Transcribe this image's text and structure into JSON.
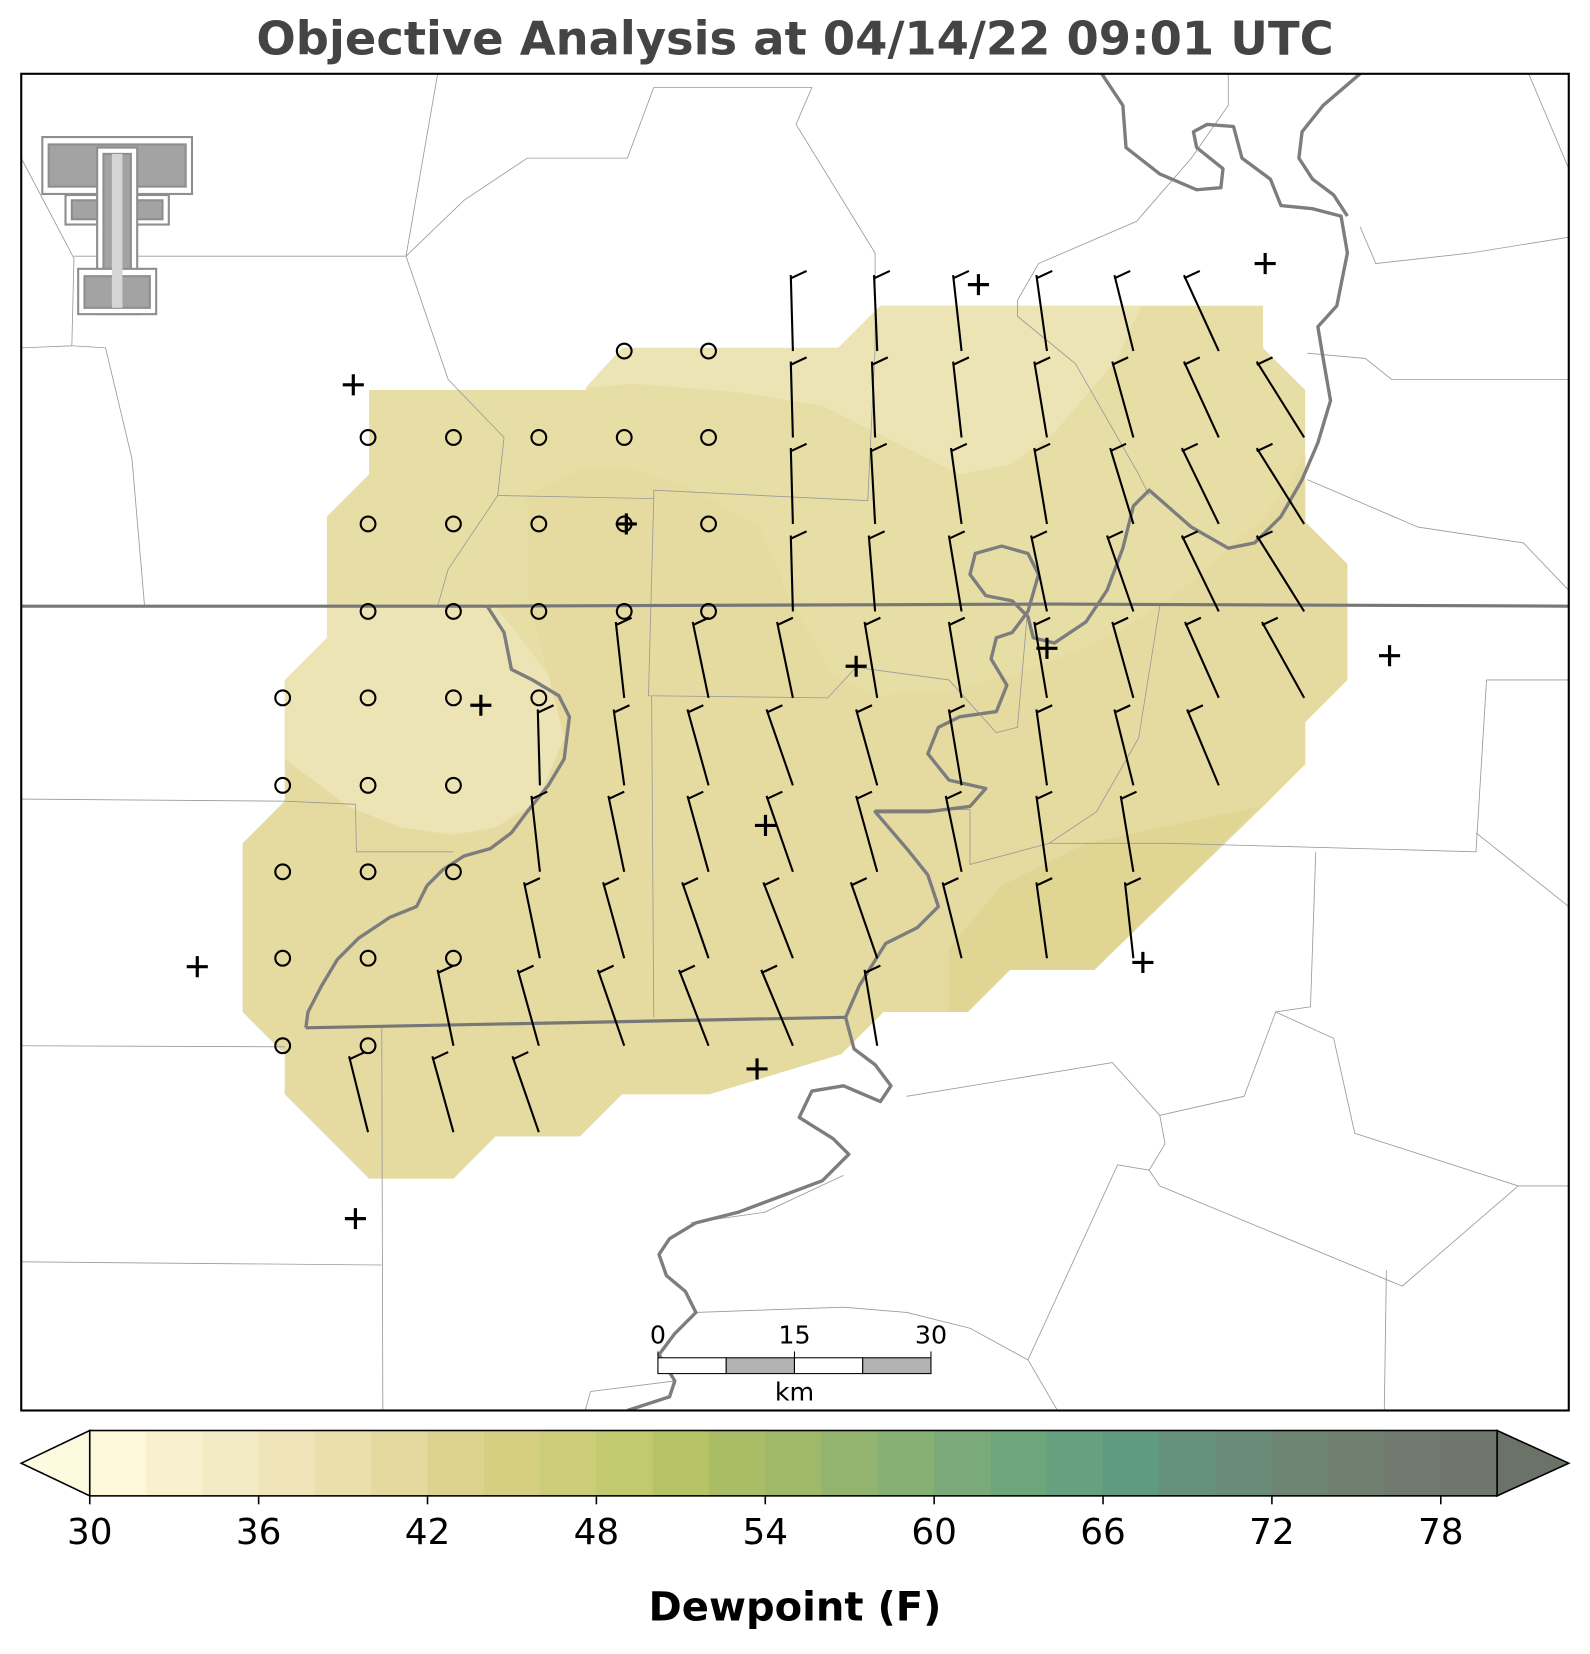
{
  "title": "Objective Analysis at 04/14/22 09:01 UTC",
  "map": {
    "scale_bar": {
      "ticks": [
        0,
        15,
        30
      ],
      "unit": "km"
    }
  },
  "colorbar": {
    "label": "Dewpoint (F)",
    "lim": [
      30,
      80
    ],
    "ticks": [
      30,
      36,
      42,
      48,
      54,
      60,
      66,
      72,
      78
    ],
    "colors": [
      "#fcf8d8",
      "#f8f1cf",
      "#f3ebc3",
      "#efe5b8",
      "#eae0ac",
      "#e5d99f",
      "#ddd38f",
      "#d5cf82",
      "#cccd78",
      "#c2c96f",
      "#b6c467",
      "#aabd66",
      "#9fb869",
      "#92b46e",
      "#86b074",
      "#7aaa79",
      "#6ea67c",
      "#66a07e",
      "#609a80",
      "#64927c",
      "#6a8b78",
      "#6f8574",
      "#717f71",
      "#717a6e",
      "#70766b"
    ],
    "under_color": "#fdfae0",
    "over_color": "#6b7268"
  }
}
